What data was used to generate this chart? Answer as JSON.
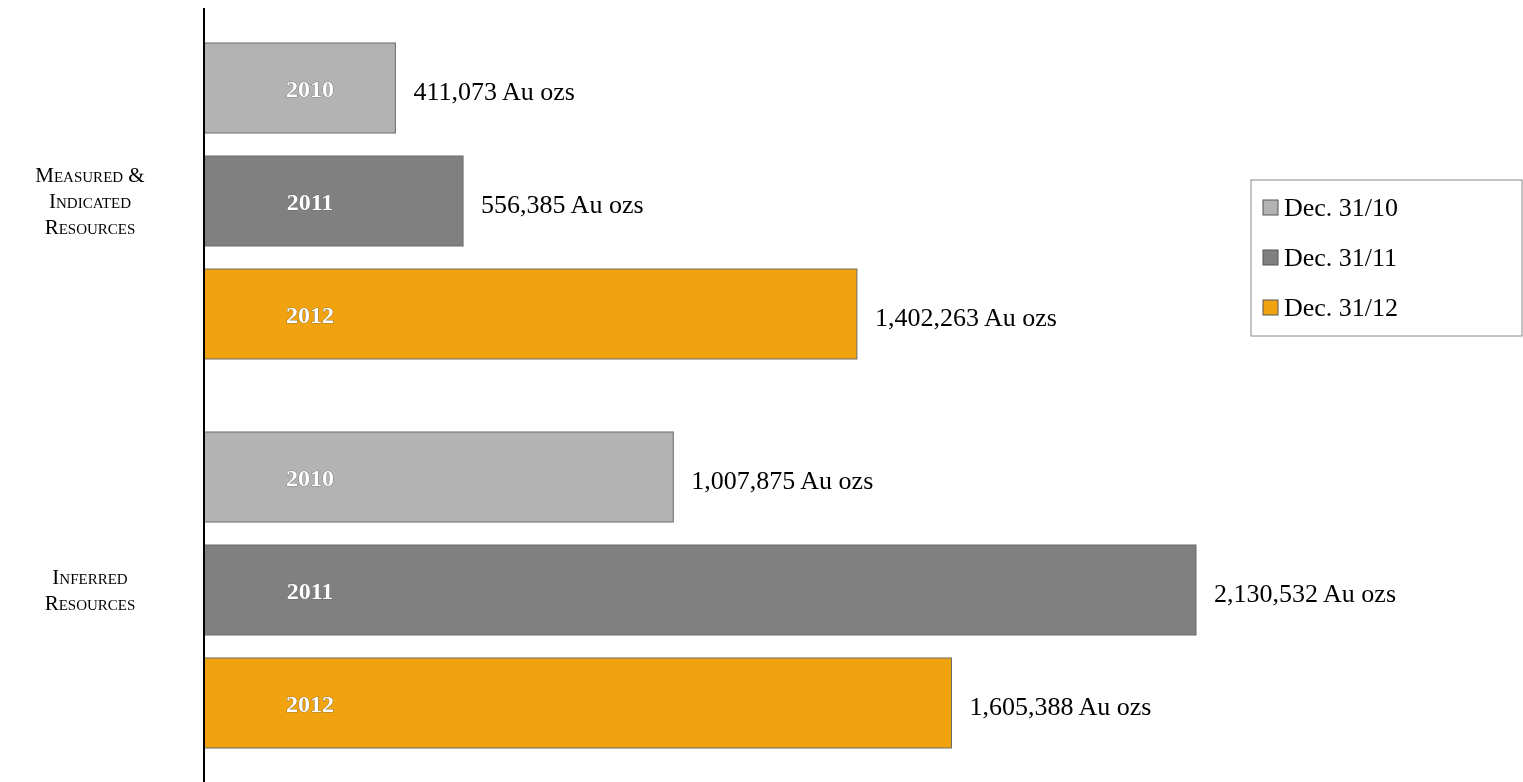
{
  "chart_data": {
    "type": "bar",
    "orientation": "horizontal",
    "categories": [
      "Measured & Indicated Resources",
      "Inferred Resources"
    ],
    "series": [
      {
        "name": "Dec. 31/10",
        "color": "#b3b3b3",
        "values": [
          411073,
          1007875
        ],
        "value_labels": [
          "411,073 Au ozs",
          "1,007,875 Au ozs"
        ]
      },
      {
        "name": "Dec. 31/11",
        "color": "#808080",
        "values": [
          556385,
          2130532
        ],
        "value_labels": [
          "556,385 Au ozs",
          "2,130,532 Au ozs"
        ]
      },
      {
        "name": "Dec. 31/12",
        "color": "#f0a30f",
        "values": [
          1402263,
          1605388
        ],
        "value_labels": [
          "1,402,263 Au ozs",
          "1,605,388 Au ozs"
        ]
      }
    ],
    "annotations": [
      "2010",
      "2011",
      "2012",
      "2010",
      "2011",
      "2012"
    ],
    "legend": "right"
  }
}
